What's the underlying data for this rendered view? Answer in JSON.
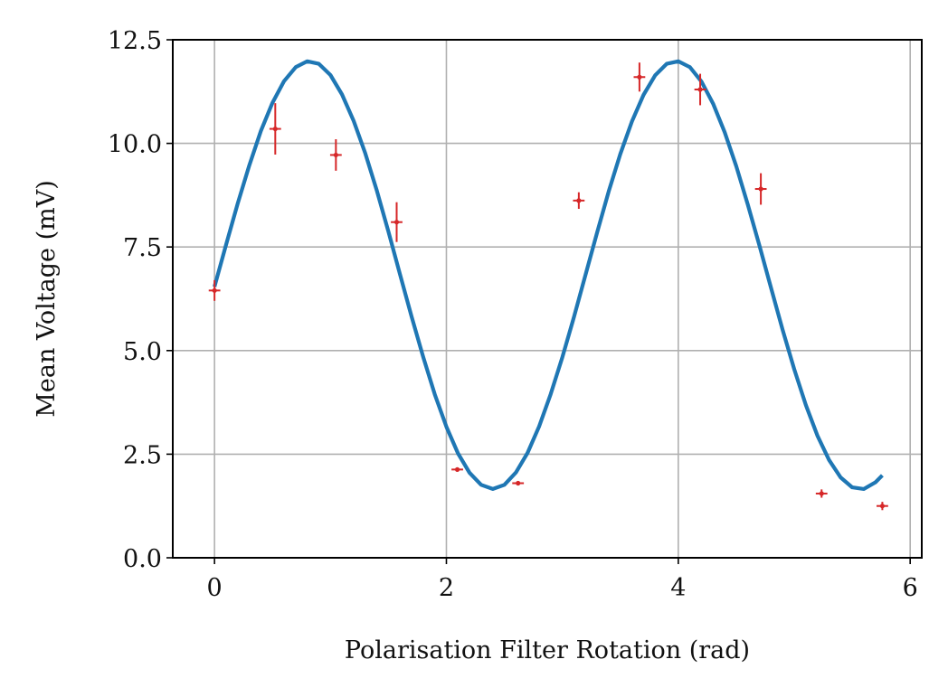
{
  "chart_data": {
    "type": "scatter",
    "title": "",
    "xlabel": "Polarisation Filter Rotation (rad)",
    "ylabel": "Mean Voltage (mV)",
    "xlim": [
      -0.36,
      6.1
    ],
    "ylim": [
      0.0,
      12.5
    ],
    "xticks": [
      0,
      2,
      4,
      6
    ],
    "xtick_labels": [
      "0",
      "2",
      "4",
      "6"
    ],
    "yticks": [
      0.0,
      2.5,
      5.0,
      7.5,
      10.0,
      12.5
    ],
    "ytick_labels": [
      "0.0",
      "2.5",
      "5.0",
      "7.5",
      "10.0",
      "12.5"
    ],
    "grid": true,
    "legend": false,
    "colors": {
      "measured": "#d62728",
      "fit": "#1f77b4",
      "grid": "#b0b0b0",
      "axes": "#000000"
    },
    "series": [
      {
        "kind": "errorbar",
        "x": [
          0.0,
          0.524,
          1.047,
          1.571,
          2.094,
          2.618,
          3.142,
          3.665,
          4.189,
          4.712,
          5.236,
          5.76
        ],
        "y": [
          6.45,
          10.35,
          9.72,
          8.1,
          2.13,
          1.8,
          8.62,
          11.6,
          11.3,
          8.9,
          1.55,
          1.25
        ],
        "yerr": [
          0.25,
          0.62,
          0.38,
          0.48,
          0.05,
          0.05,
          0.2,
          0.35,
          0.38,
          0.38,
          0.1,
          0.1
        ],
        "xerr": [
          0.05,
          0.05,
          0.05,
          0.05,
          0.05,
          0.05,
          0.05,
          0.05,
          0.05,
          0.05,
          0.05,
          0.05
        ]
      },
      {
        "kind": "line",
        "x": [
          0.0,
          0.1,
          0.2,
          0.3,
          0.4,
          0.5,
          0.6,
          0.7,
          0.8,
          0.9,
          1.0,
          1.1,
          1.2,
          1.3,
          1.4,
          1.5,
          1.6,
          1.7,
          1.8,
          1.9,
          2.0,
          2.1,
          2.2,
          2.3,
          2.4,
          2.5,
          2.6,
          2.7,
          2.8,
          2.9,
          3.0,
          3.1,
          3.2,
          3.3,
          3.4,
          3.5,
          3.6,
          3.7,
          3.8,
          3.9,
          4.0,
          4.1,
          4.2,
          4.3,
          4.4,
          4.5,
          4.6,
          4.7,
          4.8,
          4.9,
          5.0,
          5.1,
          5.2,
          5.3,
          5.4,
          5.5,
          5.6,
          5.7,
          5.76
        ],
        "y": [
          6.54,
          7.56,
          8.55,
          9.47,
          10.3,
          10.98,
          11.5,
          11.84,
          11.98,
          11.92,
          11.65,
          11.18,
          10.54,
          9.76,
          8.86,
          7.87,
          6.84,
          5.82,
          4.84,
          3.94,
          3.16,
          2.52,
          2.05,
          1.76,
          1.66,
          1.76,
          2.06,
          2.53,
          3.17,
          3.95,
          4.84,
          5.81,
          6.83,
          7.85,
          8.84,
          9.74,
          10.53,
          11.17,
          11.64,
          11.92,
          11.98,
          11.84,
          11.49,
          10.96,
          10.27,
          9.45,
          8.52,
          7.53,
          6.51,
          5.5,
          4.55,
          3.69,
          2.95,
          2.36,
          1.94,
          1.7,
          1.66,
          1.82,
          1.99
        ]
      }
    ]
  }
}
